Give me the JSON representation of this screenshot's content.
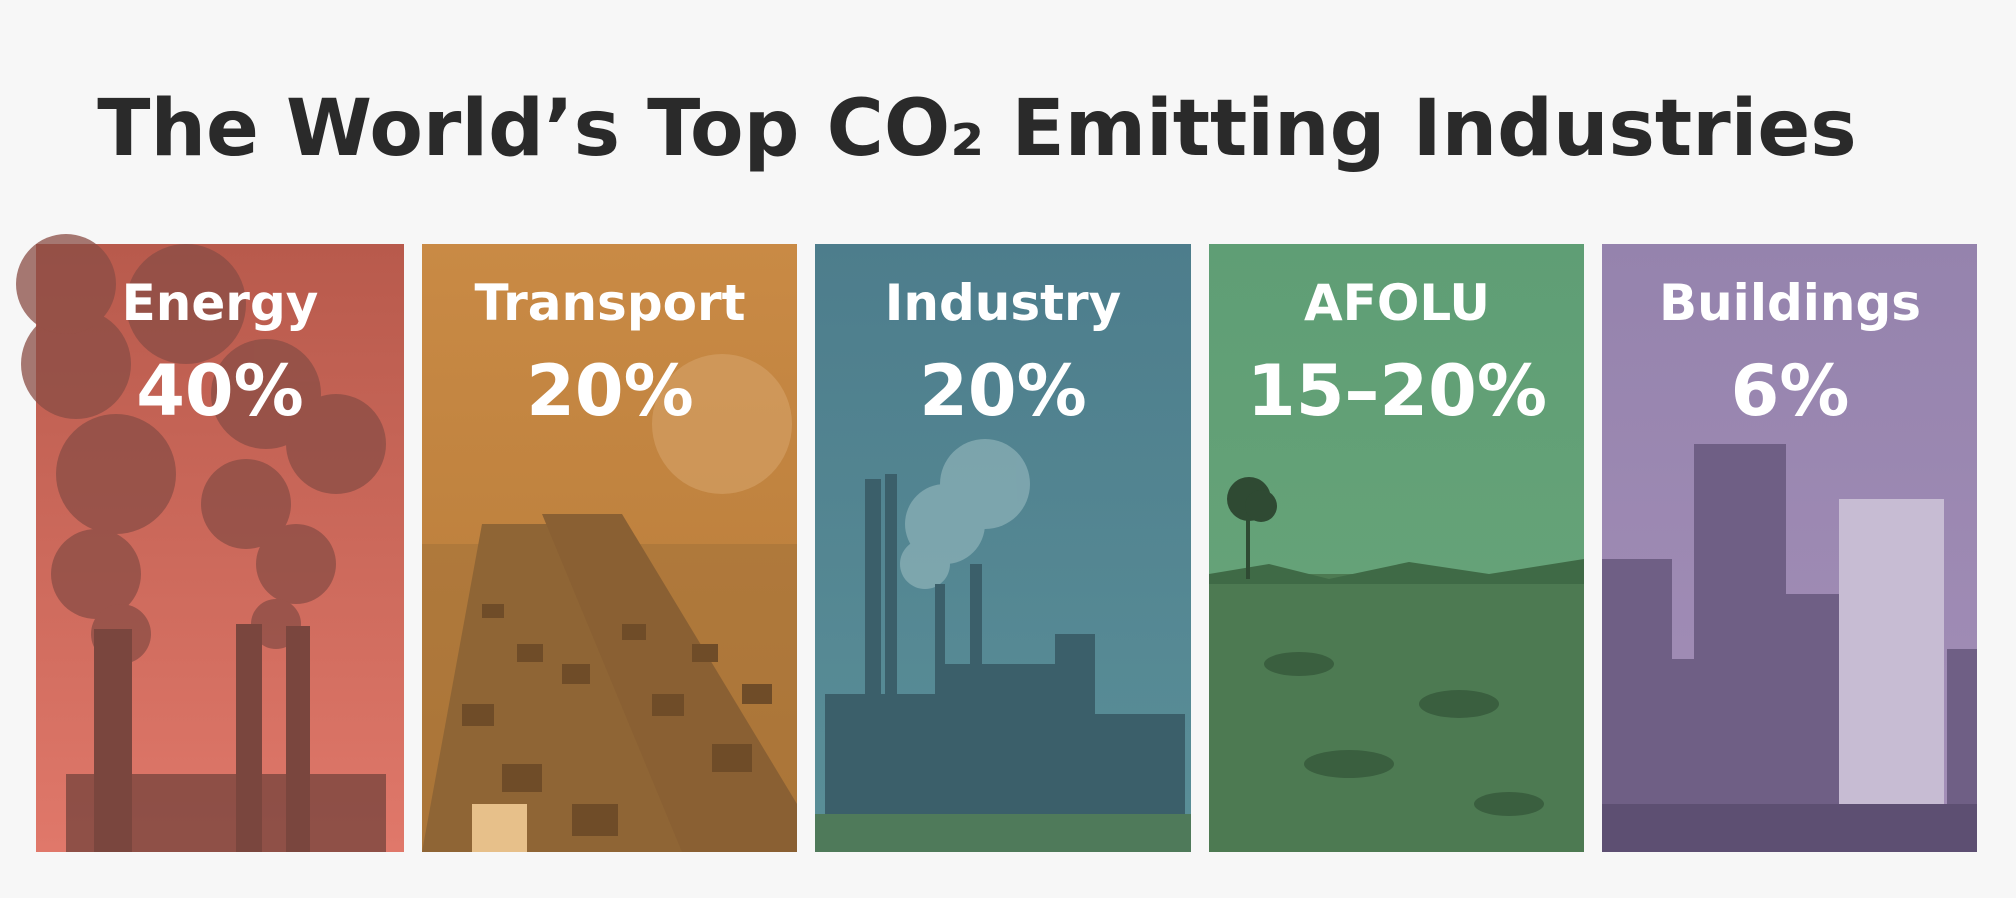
{
  "header": {
    "title": "The World’s Top CO₂ Emitting Industries"
  },
  "panels": [
    {
      "label": "Energy",
      "value": "40%"
    },
    {
      "label": "Transport",
      "value": "20%"
    },
    {
      "label": "Industry",
      "value": "20%"
    },
    {
      "label": "AFOLU",
      "value": "15–20%"
    },
    {
      "label": "Buildings",
      "value": "6%"
    }
  ]
}
